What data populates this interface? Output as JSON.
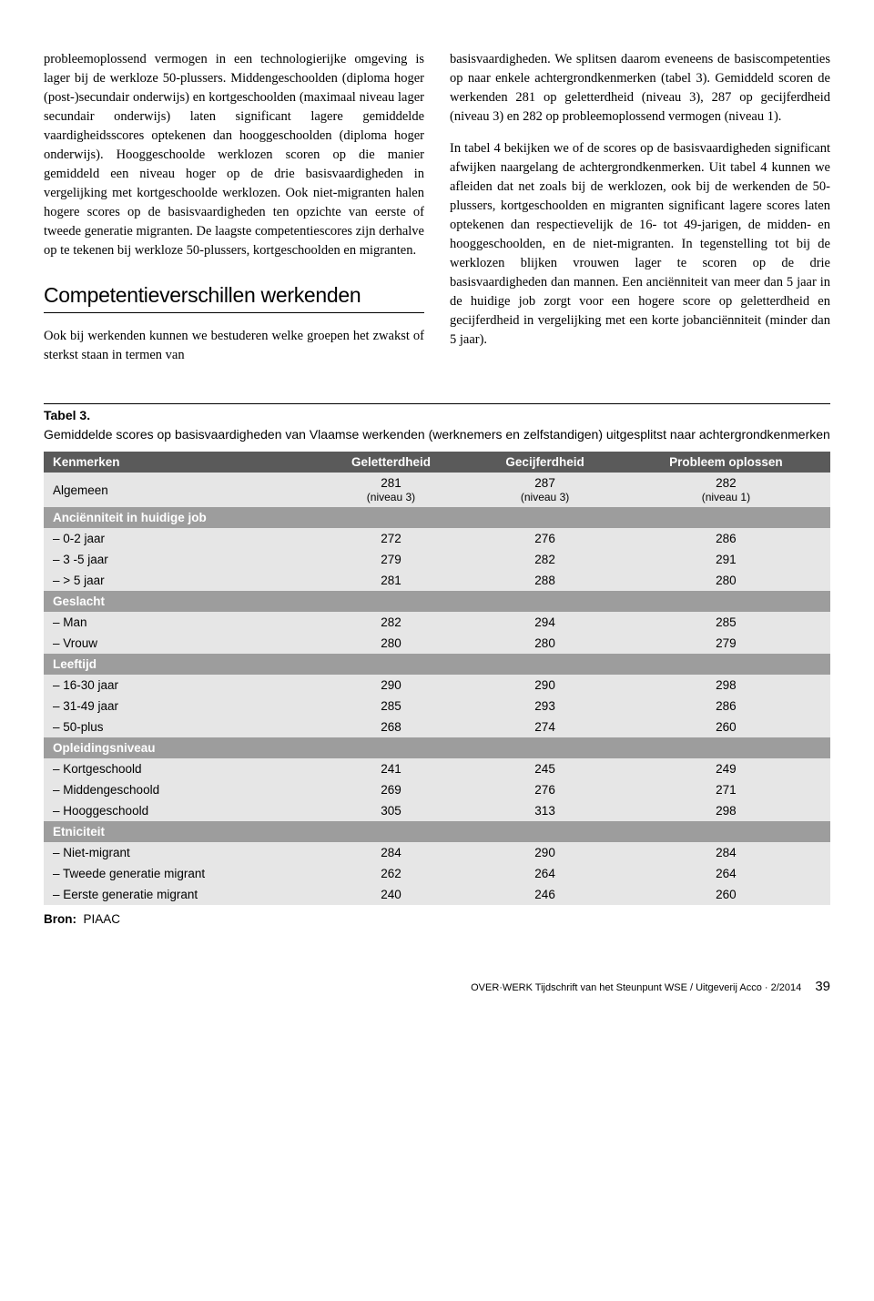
{
  "col1": {
    "p1": "probleemoplossend vermogen in een technologierijke omgeving is lager bij de werkloze 50-plussers. Middengeschoolden (diploma hoger (post-)secundair onderwijs) en kortgeschoolden (maximaal niveau lager secundair onderwijs) laten significant lagere gemiddelde vaardigheidsscores optekenen dan hooggeschoolden (diploma hoger onderwijs). Hooggeschoolde werklozen scoren op die manier gemiddeld een niveau hoger op de drie basisvaardigheden in vergelijking met kortgeschoolde werklozen. Ook niet-migranten halen hogere scores op de basisvaardigheden ten opzichte van eerste of tweede generatie migranten. De laagste competentiescores zijn derhalve op te tekenen bij werkloze 50-plussers, kortgeschoolden en migranten.",
    "subhead": "Competentieverschillen werkenden",
    "p2": "Ook bij werkenden kunnen we bestuderen welke groepen het zwakst of sterkst staan in termen van"
  },
  "col2": {
    "p1": "basisvaardigheden. We splitsen daarom eveneens de basiscompetenties op naar enkele achtergrondkenmerken (tabel 3). Gemiddeld scoren de werkenden 281 op geletterdheid (niveau 3), 287 op gecijferdheid (niveau 3) en 282 op probleemoplossend vermogen (niveau 1).",
    "p2": "In tabel 4 bekijken we of de scores op de basisvaardigheden significant afwijken naargelang de achtergrondkenmerken. Uit tabel 4 kunnen we afleiden dat net zoals bij de werklozen, ook bij de werkenden de 50-plussers, kortgeschoolden en migranten significant lagere scores laten optekenen dan respectievelijk de 16- tot 49-jarigen, de midden- en hooggeschoolden, en de niet-migranten. In tegenstelling tot bij de werklozen blijken vrouwen lager te scoren op de drie basisvaardigheden dan mannen. Een anciënniteit van meer dan 5 jaar in de huidige job zorgt voor een hogere score op geletterdheid en gecijferdheid in vergelijking met een korte jobanciënniteit (minder dan 5 jaar)."
  },
  "table": {
    "num": "Tabel 3.",
    "desc": "Gemiddelde scores op basisvaardigheden van Vlaamse werkenden (werknemers en zelfstandigen) uitgesplitst naar achtergrondkenmerken",
    "headers": [
      "Kenmerken",
      "Geletterdheid",
      "Gecijferdheid",
      "Probleem oplossen"
    ],
    "algemeen": {
      "label": "Algemeen",
      "vals": [
        "281",
        "287",
        "282"
      ],
      "subs": [
        "(niveau 3)",
        "(niveau 3)",
        "(niveau 1)"
      ]
    },
    "sections": [
      {
        "title": "Anciënniteit in huidige job",
        "rows": [
          {
            "label": "– 0-2 jaar",
            "vals": [
              "272",
              "276",
              "286"
            ]
          },
          {
            "label": "– 3 -5 jaar",
            "vals": [
              "279",
              "282",
              "291"
            ]
          },
          {
            "label": "– > 5 jaar",
            "vals": [
              "281",
              "288",
              "280"
            ]
          }
        ]
      },
      {
        "title": "Geslacht",
        "rows": [
          {
            "label": "– Man",
            "vals": [
              "282",
              "294",
              "285"
            ]
          },
          {
            "label": "– Vrouw",
            "vals": [
              "280",
              "280",
              "279"
            ]
          }
        ]
      },
      {
        "title": "Leeftijd",
        "rows": [
          {
            "label": "– 16-30 jaar",
            "vals": [
              "290",
              "290",
              "298"
            ]
          },
          {
            "label": "– 31-49 jaar",
            "vals": [
              "285",
              "293",
              "286"
            ]
          },
          {
            "label": "– 50-plus",
            "vals": [
              "268",
              "274",
              "260"
            ]
          }
        ]
      },
      {
        "title": "Opleidingsniveau",
        "rows": [
          {
            "label": "– Kortgeschoold",
            "vals": [
              "241",
              "245",
              "249"
            ]
          },
          {
            "label": "– Middengeschoold",
            "vals": [
              "269",
              "276",
              "271"
            ]
          },
          {
            "label": "– Hooggeschoold",
            "vals": [
              "305",
              "313",
              "298"
            ]
          }
        ]
      },
      {
        "title": "Etniciteit",
        "rows": [
          {
            "label": "– Niet-migrant",
            "vals": [
              "284",
              "290",
              "284"
            ]
          },
          {
            "label": "– Tweede generatie migrant",
            "vals": [
              "262",
              "264",
              "264"
            ]
          },
          {
            "label": "– Eerste generatie migrant",
            "vals": [
              "240",
              "246",
              "260"
            ]
          }
        ]
      }
    ]
  },
  "source": {
    "label": "Bron:",
    "value": "PIAAC"
  },
  "footer": {
    "text": "OVER·WERK Tijdschrift van het Steunpunt WSE / Uitgeverij Acco · 2/2014",
    "page": "39"
  }
}
